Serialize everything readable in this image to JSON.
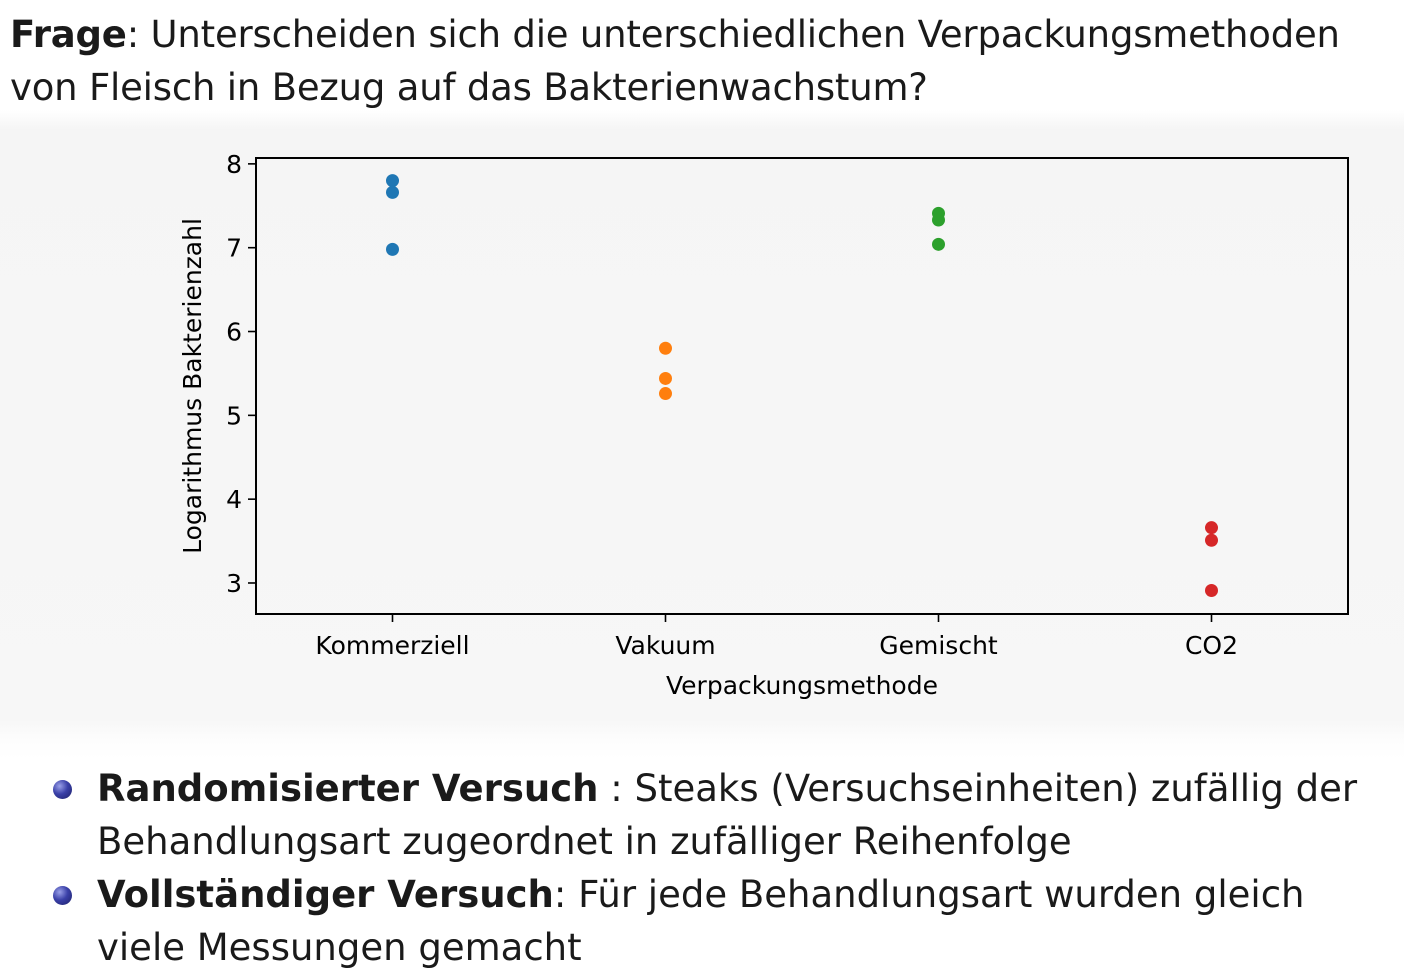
{
  "question": {
    "label": "Frage",
    "text": ": Unterscheiden sich die unterschiedlichen Verpackungsmethoden von Fleisch in Bezug auf das Bakterienwachstum?"
  },
  "chart_data": {
    "type": "scatter",
    "xlabel": "Verpackungsmethode",
    "ylabel": "Logarithmus Bakterienzahl",
    "categories": [
      "Kommerziell",
      "Vakuum",
      "Gemischt",
      "CO2"
    ],
    "ylim": [
      2.63,
      8.07
    ],
    "yticks": [
      3,
      4,
      5,
      6,
      7,
      8
    ],
    "grid": false,
    "series": [
      {
        "category": "Kommerziell",
        "values": [
          7.8,
          7.66,
          6.98
        ],
        "color": "#1f77b4"
      },
      {
        "category": "Vakuum",
        "values": [
          5.8,
          5.44,
          5.26
        ],
        "color": "#ff7f0e"
      },
      {
        "category": "Gemischt",
        "values": [
          7.41,
          7.33,
          7.04
        ],
        "color": "#2ca02c"
      },
      {
        "category": "CO2",
        "values": [
          3.66,
          3.51,
          2.91
        ],
        "color": "#d62728"
      }
    ]
  },
  "bullets": [
    {
      "bold": "Randomisierter Versuch",
      "text": " : Steaks (Versuchseinheiten) zufällig der Behandlungsart zugeordnet in zufälliger Reihenfolge"
    },
    {
      "bold": "Vollständiger Versuch",
      "text": ": Für jede Behandlungsart wurden gleich viele Messungen gemacht"
    }
  ]
}
